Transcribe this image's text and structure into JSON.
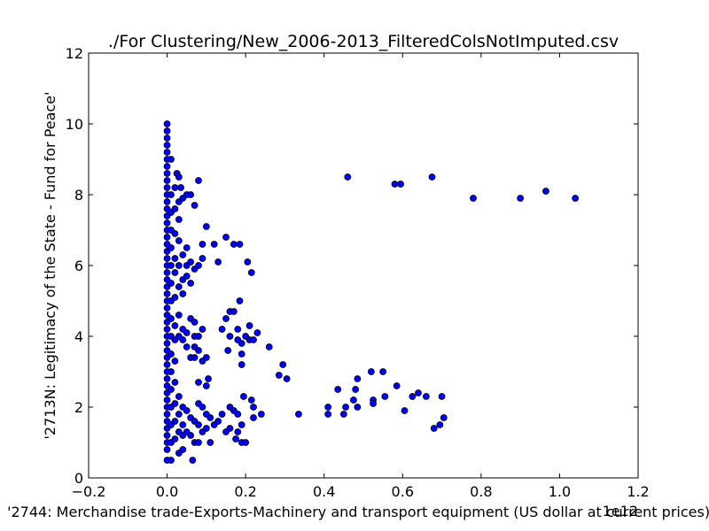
{
  "chart_data": {
    "type": "scatter",
    "title": "./For Clustering/New_2006-2013_FilteredColsNotImputed.csv",
    "xlabel": "'2744: Merchandise trade-Exports-Machinery and transport equipment (US dollar at current prices) -",
    "ylabel": "'2713N: Legitimacy of the State - Fund for Peace'",
    "x_offset_label": "1e12",
    "xlim": [
      -0.2,
      1.2
    ],
    "ylim": [
      0,
      12
    ],
    "xticks": [
      "−0.2",
      "0.0",
      "0.2",
      "0.4",
      "0.6",
      "0.8",
      "1.0",
      "1.2"
    ],
    "yticks": [
      "0",
      "2",
      "4",
      "6",
      "8",
      "10",
      "12"
    ],
    "grid": false,
    "marker_color": "#0000ff",
    "points": [
      [
        0.0,
        10.0
      ],
      [
        0.0,
        9.8
      ],
      [
        0.0,
        9.6
      ],
      [
        0.0,
        9.4
      ],
      [
        0.0,
        9.2
      ],
      [
        0.0,
        9.0
      ],
      [
        0.0,
        8.8
      ],
      [
        0.0,
        8.6
      ],
      [
        0.0,
        8.4
      ],
      [
        0.0,
        8.2
      ],
      [
        0.0,
        8.0
      ],
      [
        0.0,
        7.8
      ],
      [
        0.0,
        7.6
      ],
      [
        0.0,
        7.4
      ],
      [
        0.0,
        7.2
      ],
      [
        0.0,
        7.0
      ],
      [
        0.0,
        6.8
      ],
      [
        0.0,
        6.6
      ],
      [
        0.0,
        6.4
      ],
      [
        0.0,
        6.2
      ],
      [
        0.0,
        6.0
      ],
      [
        0.0,
        5.8
      ],
      [
        0.0,
        5.6
      ],
      [
        0.0,
        5.4
      ],
      [
        0.0,
        5.2
      ],
      [
        0.0,
        5.0
      ],
      [
        0.0,
        4.8
      ],
      [
        0.0,
        4.6
      ],
      [
        0.0,
        4.4
      ],
      [
        0.0,
        4.2
      ],
      [
        0.0,
        4.0
      ],
      [
        0.0,
        3.8
      ],
      [
        0.0,
        3.6
      ],
      [
        0.0,
        3.4
      ],
      [
        0.0,
        3.2
      ],
      [
        0.0,
        3.0
      ],
      [
        0.0,
        2.8
      ],
      [
        0.0,
        2.6
      ],
      [
        0.0,
        2.4
      ],
      [
        0.0,
        2.2
      ],
      [
        0.0,
        2.0
      ],
      [
        0.0,
        1.8
      ],
      [
        0.0,
        1.6
      ],
      [
        0.0,
        1.4
      ],
      [
        0.0,
        1.2
      ],
      [
        0.0,
        1.0
      ],
      [
        0.0,
        0.8
      ],
      [
        0.0,
        0.5
      ],
      [
        0.01,
        9.0
      ],
      [
        0.01,
        8.0
      ],
      [
        0.01,
        7.5
      ],
      [
        0.01,
        7.0
      ],
      [
        0.01,
        6.5
      ],
      [
        0.01,
        6.0
      ],
      [
        0.01,
        5.5
      ],
      [
        0.01,
        5.0
      ],
      [
        0.01,
        4.5
      ],
      [
        0.01,
        4.0
      ],
      [
        0.01,
        3.5
      ],
      [
        0.01,
        3.0
      ],
      [
        0.01,
        2.5
      ],
      [
        0.01,
        2.0
      ],
      [
        0.01,
        1.5
      ],
      [
        0.01,
        1.0
      ],
      [
        0.01,
        0.5
      ],
      [
        0.02,
        8.2
      ],
      [
        0.02,
        7.6
      ],
      [
        0.02,
        6.9
      ],
      [
        0.02,
        6.2
      ],
      [
        0.02,
        5.8
      ],
      [
        0.02,
        5.1
      ],
      [
        0.02,
        4.3
      ],
      [
        0.02,
        3.9
      ],
      [
        0.02,
        3.3
      ],
      [
        0.02,
        2.7
      ],
      [
        0.02,
        2.1
      ],
      [
        0.02,
        1.6
      ],
      [
        0.02,
        1.1
      ],
      [
        0.025,
        8.6
      ],
      [
        0.03,
        8.5
      ],
      [
        0.035,
        8.2
      ],
      [
        0.03,
        7.8
      ],
      [
        0.03,
        7.3
      ],
      [
        0.03,
        6.7
      ],
      [
        0.03,
        6.0
      ],
      [
        0.03,
        5.4
      ],
      [
        0.03,
        4.6
      ],
      [
        0.03,
        4.0
      ],
      [
        0.03,
        2.3
      ],
      [
        0.03,
        1.8
      ],
      [
        0.03,
        1.3
      ],
      [
        0.03,
        0.7
      ],
      [
        0.04,
        7.9
      ],
      [
        0.04,
        6.3
      ],
      [
        0.04,
        5.6
      ],
      [
        0.04,
        5.2
      ],
      [
        0.04,
        4.2
      ],
      [
        0.04,
        3.9
      ],
      [
        0.04,
        2.0
      ],
      [
        0.04,
        1.5
      ],
      [
        0.04,
        1.2
      ],
      [
        0.04,
        0.8
      ],
      [
        0.05,
        8.0
      ],
      [
        0.05,
        6.5
      ],
      [
        0.05,
        6.0
      ],
      [
        0.05,
        5.7
      ],
      [
        0.05,
        4.1
      ],
      [
        0.05,
        3.7
      ],
      [
        0.05,
        1.9
      ],
      [
        0.05,
        1.3
      ],
      [
        0.06,
        8.0
      ],
      [
        0.06,
        6.1
      ],
      [
        0.06,
        5.5
      ],
      [
        0.06,
        4.5
      ],
      [
        0.06,
        3.4
      ],
      [
        0.06,
        1.7
      ],
      [
        0.06,
        1.2
      ],
      [
        0.065,
        0.5
      ],
      [
        0.07,
        7.7
      ],
      [
        0.07,
        5.9
      ],
      [
        0.07,
        4.4
      ],
      [
        0.07,
        4.0
      ],
      [
        0.07,
        3.7
      ],
      [
        0.07,
        3.4
      ],
      [
        0.07,
        1.6
      ],
      [
        0.07,
        1.0
      ],
      [
        0.08,
        8.4
      ],
      [
        0.08,
        6.0
      ],
      [
        0.08,
        4.0
      ],
      [
        0.08,
        3.6
      ],
      [
        0.08,
        2.7
      ],
      [
        0.08,
        2.1
      ],
      [
        0.08,
        1.5
      ],
      [
        0.08,
        1.0
      ],
      [
        0.09,
        6.6
      ],
      [
        0.09,
        6.2
      ],
      [
        0.09,
        4.2
      ],
      [
        0.09,
        3.3
      ],
      [
        0.09,
        2.0
      ],
      [
        0.09,
        1.3
      ],
      [
        0.1,
        7.1
      ],
      [
        0.1,
        3.4
      ],
      [
        0.1,
        2.6
      ],
      [
        0.1,
        1.8
      ],
      [
        0.1,
        1.4
      ],
      [
        0.105,
        2.8
      ],
      [
        0.11,
        1.0
      ],
      [
        0.11,
        1.7
      ],
      [
        0.12,
        6.6
      ],
      [
        0.12,
        1.5
      ],
      [
        0.13,
        6.1
      ],
      [
        0.13,
        1.6
      ],
      [
        0.14,
        4.2
      ],
      [
        0.14,
        1.8
      ],
      [
        0.15,
        6.8
      ],
      [
        0.15,
        4.5
      ],
      [
        0.15,
        1.3
      ],
      [
        0.155,
        3.6
      ],
      [
        0.16,
        4.7
      ],
      [
        0.16,
        4.0
      ],
      [
        0.16,
        2.0
      ],
      [
        0.16,
        1.4
      ],
      [
        0.17,
        6.6
      ],
      [
        0.17,
        4.7
      ],
      [
        0.17,
        1.9
      ],
      [
        0.175,
        1.1
      ],
      [
        0.18,
        4.2
      ],
      [
        0.18,
        3.9
      ],
      [
        0.18,
        1.8
      ],
      [
        0.18,
        1.3
      ],
      [
        0.185,
        6.6
      ],
      [
        0.185,
        5.0
      ],
      [
        0.19,
        3.8
      ],
      [
        0.19,
        3.5
      ],
      [
        0.19,
        3.2
      ],
      [
        0.19,
        1.5
      ],
      [
        0.19,
        1.0
      ],
      [
        0.195,
        2.3
      ],
      [
        0.2,
        4.0
      ],
      [
        0.2,
        1.0
      ],
      [
        0.205,
        6.1
      ],
      [
        0.21,
        4.3
      ],
      [
        0.21,
        3.9
      ],
      [
        0.215,
        5.8
      ],
      [
        0.215,
        2.2
      ],
      [
        0.22,
        3.9
      ],
      [
        0.22,
        2.0
      ],
      [
        0.22,
        1.7
      ],
      [
        0.23,
        4.1
      ],
      [
        0.24,
        1.8
      ],
      [
        0.26,
        3.7
      ],
      [
        0.285,
        2.9
      ],
      [
        0.295,
        3.2
      ],
      [
        0.305,
        2.8
      ],
      [
        0.335,
        1.8
      ],
      [
        0.41,
        2.0
      ],
      [
        0.41,
        1.8
      ],
      [
        0.435,
        2.5
      ],
      [
        0.45,
        1.8
      ],
      [
        0.455,
        2.0
      ],
      [
        0.46,
        8.5
      ],
      [
        0.475,
        2.2
      ],
      [
        0.48,
        2.5
      ],
      [
        0.485,
        2.8
      ],
      [
        0.485,
        2.0
      ],
      [
        0.52,
        3.0
      ],
      [
        0.525,
        2.2
      ],
      [
        0.525,
        2.1
      ],
      [
        0.55,
        3.0
      ],
      [
        0.555,
        2.3
      ],
      [
        0.58,
        8.3
      ],
      [
        0.585,
        2.6
      ],
      [
        0.595,
        8.3
      ],
      [
        0.605,
        1.9
      ],
      [
        0.625,
        2.3
      ],
      [
        0.64,
        2.4
      ],
      [
        0.66,
        2.3
      ],
      [
        0.675,
        8.5
      ],
      [
        0.68,
        1.4
      ],
      [
        0.695,
        1.5
      ],
      [
        0.7,
        2.3
      ],
      [
        0.705,
        1.7
      ],
      [
        0.78,
        7.9
      ],
      [
        0.9,
        7.9
      ],
      [
        0.965,
        8.1
      ],
      [
        1.04,
        7.9
      ]
    ]
  }
}
